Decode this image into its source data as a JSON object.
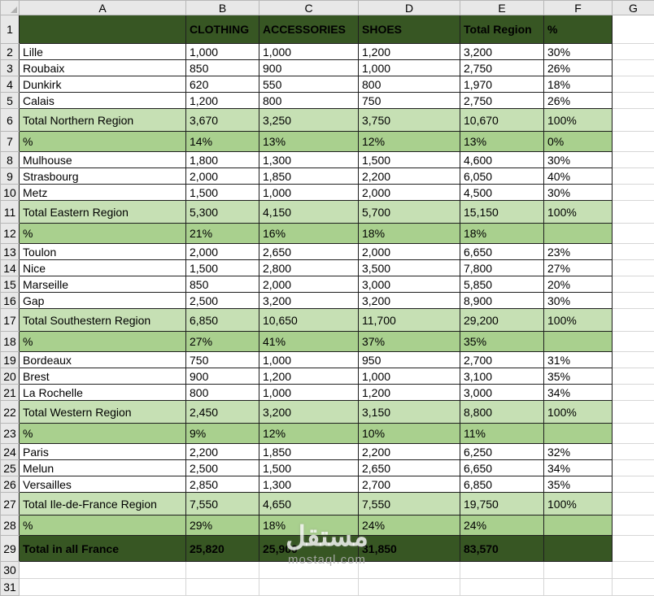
{
  "app": "spreadsheet",
  "columns": [
    "A",
    "B",
    "C",
    "D",
    "E",
    "F",
    "G"
  ],
  "colors": {
    "dark_green": "#375623",
    "total_row_green": "#c6e0b4",
    "percent_row_green": "#a9d08e",
    "gutter_bg": "#e8e8e8",
    "gutter_border": "#b7b7b7",
    "gutter_text": "#474747",
    "cell_border": "#1f1f1f",
    "grid_line": "#d6d6d6"
  },
  "rows": [
    {
      "n": 1,
      "type": "header",
      "cells": [
        "",
        "CLOTHING",
        "ACCESSORIES",
        "SHOES",
        "Total Region",
        "%"
      ]
    },
    {
      "n": 2,
      "type": "city",
      "cells": [
        "Lille",
        "1,000",
        "1,000",
        "1,200",
        "3,200",
        "30%"
      ]
    },
    {
      "n": 3,
      "type": "city",
      "cells": [
        "Roubaix",
        "850",
        "900",
        "1,000",
        "2,750",
        "26%"
      ]
    },
    {
      "n": 4,
      "type": "city",
      "cells": [
        "Dunkirk",
        "620",
        "550",
        "800",
        "1,970",
        "18%"
      ]
    },
    {
      "n": 5,
      "type": "city",
      "cells": [
        "Calais",
        "1,200",
        "800",
        "750",
        "2,750",
        "26%"
      ]
    },
    {
      "n": 6,
      "type": "total",
      "cells": [
        "Total Northern Region",
        "3,670",
        "3,250",
        "3,750",
        "10,670",
        "100%"
      ]
    },
    {
      "n": 7,
      "type": "pct",
      "cells": [
        "%",
        "14%",
        "13%",
        "12%",
        "13%",
        "0%"
      ]
    },
    {
      "n": 8,
      "type": "city",
      "cells": [
        "Mulhouse",
        "1,800",
        "1,300",
        "1,500",
        "4,600",
        "30%"
      ]
    },
    {
      "n": 9,
      "type": "city",
      "cells": [
        "Strasbourg",
        "2,000",
        "1,850",
        "2,200",
        "6,050",
        "40%"
      ]
    },
    {
      "n": 10,
      "type": "city",
      "cells": [
        "Metz",
        "1,500",
        "1,000",
        "2,000",
        "4,500",
        "30%"
      ]
    },
    {
      "n": 11,
      "type": "total",
      "cells": [
        "Total Eastern Region",
        "5,300",
        "4,150",
        "5,700",
        "15,150",
        "100%"
      ]
    },
    {
      "n": 12,
      "type": "pct",
      "cells": [
        "%",
        "21%",
        "16%",
        "18%",
        "18%",
        ""
      ]
    },
    {
      "n": 13,
      "type": "city",
      "cells": [
        "Toulon",
        "2,000",
        "2,650",
        "2,000",
        "6,650",
        "23%"
      ]
    },
    {
      "n": 14,
      "type": "city",
      "cells": [
        "Nice",
        "1,500",
        "2,800",
        "3,500",
        "7,800",
        "27%"
      ]
    },
    {
      "n": 15,
      "type": "city",
      "cells": [
        "Marseille",
        "850",
        "2,000",
        "3,000",
        "5,850",
        "20%"
      ]
    },
    {
      "n": 16,
      "type": "city",
      "cells": [
        "Gap",
        "2,500",
        "3,200",
        "3,200",
        "8,900",
        "30%"
      ]
    },
    {
      "n": 17,
      "type": "total",
      "cells": [
        "Total Southestern Region",
        "6,850",
        "10,650",
        "11,700",
        "29,200",
        "100%"
      ]
    },
    {
      "n": 18,
      "type": "pct",
      "cells": [
        "%",
        "27%",
        "41%",
        "37%",
        "35%",
        ""
      ]
    },
    {
      "n": 19,
      "type": "city",
      "cells": [
        "Bordeaux",
        "750",
        "1,000",
        "950",
        "2,700",
        "31%"
      ]
    },
    {
      "n": 20,
      "type": "city",
      "cells": [
        "Brest",
        "900",
        "1,200",
        "1,000",
        "3,100",
        "35%"
      ]
    },
    {
      "n": 21,
      "type": "city",
      "cells": [
        "La Rochelle",
        "800",
        "1,000",
        "1,200",
        "3,000",
        "34%"
      ]
    },
    {
      "n": 22,
      "type": "total",
      "cells": [
        "Total Western Region",
        "2,450",
        "3,200",
        "3,150",
        "8,800",
        "100%"
      ]
    },
    {
      "n": 23,
      "type": "pct",
      "cells": [
        "%",
        "9%",
        "12%",
        "10%",
        "11%",
        ""
      ]
    },
    {
      "n": 24,
      "type": "city",
      "cells": [
        "Paris",
        "2,200",
        "1,850",
        "2,200",
        "6,250",
        "32%"
      ]
    },
    {
      "n": 25,
      "type": "city",
      "cells": [
        "Melun",
        "2,500",
        "1,500",
        "2,650",
        "6,650",
        "34%"
      ]
    },
    {
      "n": 26,
      "type": "city",
      "cells": [
        "Versailles",
        "2,850",
        "1,300",
        "2,700",
        "6,850",
        "35%"
      ]
    },
    {
      "n": 27,
      "type": "total",
      "cells": [
        "Total Ile-de-France Region",
        "7,550",
        "4,650",
        "7,550",
        "19,750",
        "100%"
      ]
    },
    {
      "n": 28,
      "type": "pct",
      "cells": [
        "%",
        "29%",
        "18%",
        "24%",
        "24%",
        ""
      ]
    },
    {
      "n": 29,
      "type": "grand",
      "cells": [
        "Total in all France",
        "25,820",
        "25,900",
        "31,850",
        "83,570",
        ""
      ]
    },
    {
      "n": 30,
      "type": "empty",
      "cells": [
        "",
        "",
        "",
        "",
        "",
        ""
      ]
    },
    {
      "n": 31,
      "type": "empty",
      "cells": [
        "",
        "",
        "",
        "",
        "",
        ""
      ]
    }
  ],
  "watermark": {
    "arabic": "مستقل",
    "domain": "mostaql.com"
  }
}
